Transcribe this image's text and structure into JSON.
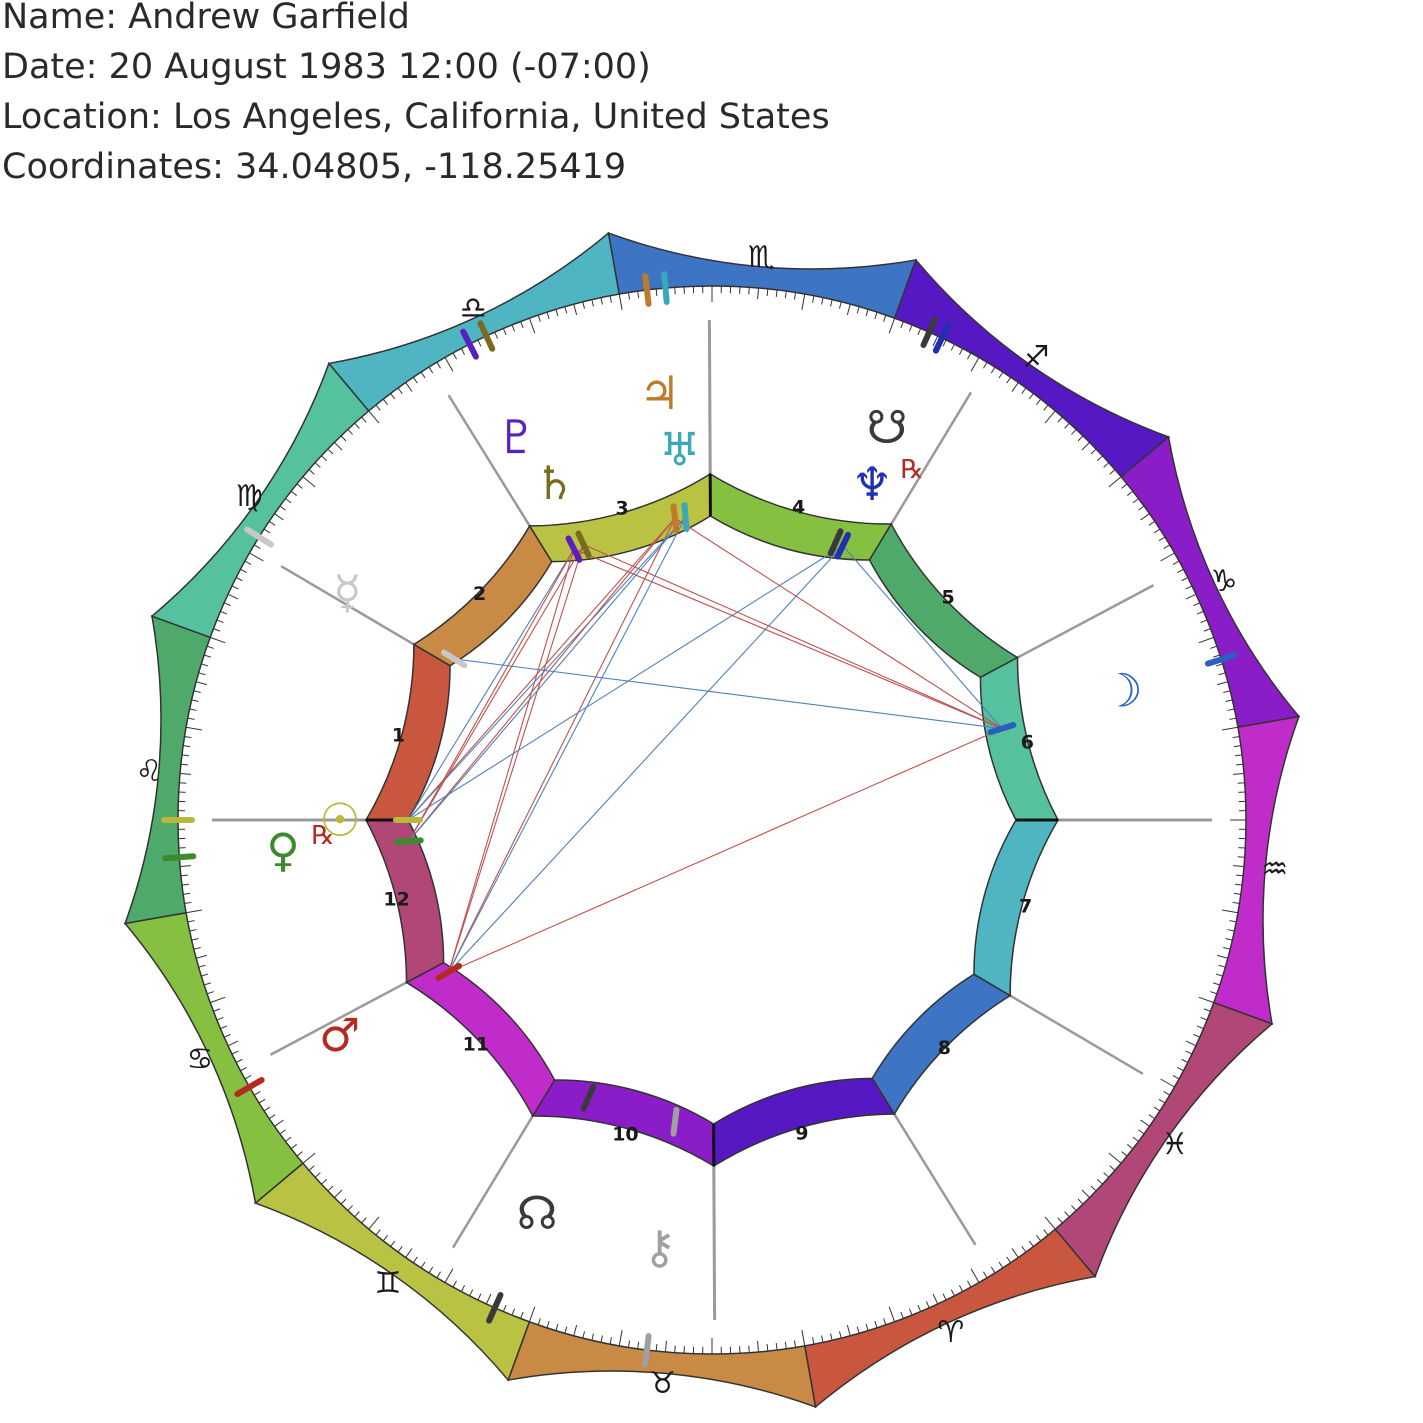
{
  "info": {
    "name": "Name: Andrew Garfield",
    "date": "Date: 20 August 1983 12:00 (-07:00)",
    "location": "Location: Los Angeles, California, United States",
    "coordinates": "Coordinates: 34.04805, -118.25419"
  },
  "chart": {
    "ascendant_longitude": 130.0,
    "signs": [
      {
        "name": "Aries",
        "glyph": "♈",
        "start": 0,
        "color": "#c9573f"
      },
      {
        "name": "Taurus",
        "glyph": "♉",
        "start": 30,
        "color": "#c98a45"
      },
      {
        "name": "Gemini",
        "glyph": "♊",
        "start": 60,
        "color": "#b9c243"
      },
      {
        "name": "Cancer",
        "glyph": "♋",
        "start": 90,
        "color": "#86c040"
      },
      {
        "name": "Leo",
        "glyph": "♌",
        "start": 120,
        "color": "#4fa96a"
      },
      {
        "name": "Virgo",
        "glyph": "♍",
        "start": 150,
        "color": "#55c19e"
      },
      {
        "name": "Libra",
        "glyph": "♎",
        "start": 180,
        "color": "#4fb5c3"
      },
      {
        "name": "Scorpio",
        "glyph": "♏",
        "start": 210,
        "color": "#3d74c4"
      },
      {
        "name": "Sagittarius",
        "glyph": "♐",
        "start": 240,
        "color": "#5518c2"
      },
      {
        "name": "Capricorn",
        "glyph": "♑",
        "start": 270,
        "color": "#8a1dc7"
      },
      {
        "name": "Aquarius",
        "glyph": "♒",
        "start": 300,
        "color": "#c02cc9"
      },
      {
        "name": "Pisces",
        "glyph": "♓",
        "start": 330,
        "color": "#b04777"
      }
    ],
    "houses": [
      {
        "number": "1",
        "cusp": 130.0,
        "color": "#c9573f"
      },
      {
        "number": "2",
        "cusp": 160.5,
        "color": "#c98a45"
      },
      {
        "number": "3",
        "cusp": 188.2,
        "color": "#b9c243"
      },
      {
        "number": "4",
        "cusp": 219.7,
        "color": "#86c040"
      },
      {
        "number": "5",
        "cusp": 251.2,
        "color": "#4fa96a"
      },
      {
        "number": "6",
        "cusp": 282.0,
        "color": "#55c19e"
      },
      {
        "number": "7",
        "cusp": 310.0,
        "color": "#4fb5c3"
      },
      {
        "number": "8",
        "cusp": 340.5,
        "color": "#3d74c4"
      },
      {
        "number": "9",
        "cusp": 8.2,
        "color": "#5518c2"
      },
      {
        "number": "10",
        "cusp": 39.7,
        "color": "#8a1dc7"
      },
      {
        "number": "11",
        "cusp": 71.2,
        "color": "#c02cc9"
      },
      {
        "number": "12",
        "cusp": 102.0,
        "color": "#b04777"
      }
    ],
    "planets": [
      {
        "name": "Sun",
        "glyph": "☉",
        "longitude": 130.0,
        "color": "#b8b83c",
        "retro": ""
      },
      {
        "name": "Moon",
        "glyph": "☽",
        "longitude": 292.5,
        "color": "#2a5fc0",
        "retro": ""
      },
      {
        "name": "Mercury",
        "glyph": "☿",
        "longitude": 162.0,
        "color": "#c8c8c8",
        "retro": ""
      },
      {
        "name": "Venus",
        "glyph": "♀",
        "longitude": 126.0,
        "color": "#3b8a2c",
        "retro": "℞"
      },
      {
        "name": "Mars",
        "glyph": "♂",
        "longitude": 100.0,
        "color": "#b52a20",
        "retro": ""
      },
      {
        "name": "Jupiter",
        "glyph": "♃",
        "longitude": 213.0,
        "color": "#c07a2a",
        "retro": ""
      },
      {
        "name": "Saturn",
        "glyph": "♄",
        "longitude": 195.0,
        "color": "#7a6a20",
        "retro": ""
      },
      {
        "name": "Uranus",
        "glyph": "♅",
        "longitude": 215.0,
        "color": "#3aa8b8",
        "retro": ""
      },
      {
        "name": "Neptune",
        "glyph": "♆",
        "longitude": 245.5,
        "color": "#1e2fb0",
        "retro": "℞"
      },
      {
        "name": "Pluto",
        "glyph": "♇",
        "longitude": 193.0,
        "color": "#5a1fc0",
        "retro": ""
      },
      {
        "name": "North Node",
        "glyph": "☊",
        "longitude": 64.0,
        "color": "#3a3a3a",
        "retro": ""
      },
      {
        "name": "South Node",
        "glyph": "☋",
        "longitude": 244.0,
        "color": "#3a3a3a",
        "retro": ""
      },
      {
        "name": "Chiron",
        "glyph": "⚷",
        "longitude": 47.0,
        "color": "#a0a0a0",
        "retro": ""
      }
    ],
    "aspects": [
      {
        "from": "Mars",
        "to": "Moon",
        "color": "#c0504d"
      },
      {
        "from": "Mars",
        "to": "Pluto",
        "color": "#c0504d"
      },
      {
        "from": "Mars",
        "to": "Saturn",
        "color": "#c0504d"
      },
      {
        "from": "Mars",
        "to": "Jupiter",
        "color": "#c0504d"
      },
      {
        "from": "Mars",
        "to": "Uranus",
        "color": "#4f81bd"
      },
      {
        "from": "Mars",
        "to": "Neptune",
        "color": "#4f81bd"
      },
      {
        "from": "Sun",
        "to": "Pluto",
        "color": "#4f81bd"
      },
      {
        "from": "Sun",
        "to": "Jupiter",
        "color": "#c0504d"
      },
      {
        "from": "Sun",
        "to": "Uranus",
        "color": "#4f81bd"
      },
      {
        "from": "Sun",
        "to": "Neptune",
        "color": "#4f81bd"
      },
      {
        "from": "Venus",
        "to": "Pluto",
        "color": "#c0504d"
      },
      {
        "from": "Venus",
        "to": "Saturn",
        "color": "#c0504d"
      },
      {
        "from": "Venus",
        "to": "Jupiter",
        "color": "#c0504d"
      },
      {
        "from": "Venus",
        "to": "Uranus",
        "color": "#4f81bd"
      },
      {
        "from": "Mercury",
        "to": "Moon",
        "color": "#4f81bd"
      },
      {
        "from": "Moon",
        "to": "Pluto",
        "color": "#c0504d"
      },
      {
        "from": "Moon",
        "to": "Saturn",
        "color": "#c0504d"
      },
      {
        "from": "Moon",
        "to": "Jupiter",
        "color": "#c0504d"
      },
      {
        "from": "Moon",
        "to": "Neptune",
        "color": "#4f81bd"
      }
    ]
  }
}
